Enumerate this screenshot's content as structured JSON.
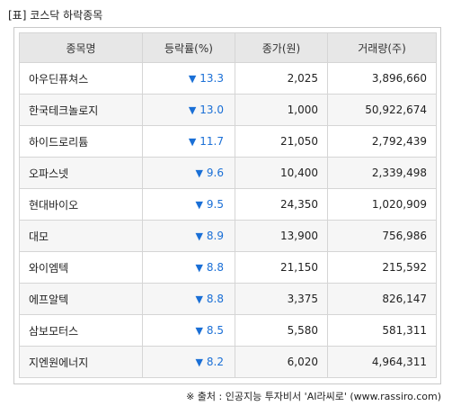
{
  "title": "[표] 코스닥 하락종목",
  "columns": [
    "종목명",
    "등락률(%)",
    "종가(원)",
    "거래량(주)"
  ],
  "down_symbol": "▼",
  "colors": {
    "down": "#1a6fd6",
    "header_bg": "#e7e7e7"
  },
  "rows": [
    {
      "name": "아우딘퓨쳐스",
      "change": "13.3",
      "close": "2,025",
      "volume": "3,896,660"
    },
    {
      "name": "한국테크놀로지",
      "change": "13.0",
      "close": "1,000",
      "volume": "50,922,674"
    },
    {
      "name": "하이드로리튬",
      "change": "11.7",
      "close": "21,050",
      "volume": "2,792,439"
    },
    {
      "name": "오파스넷",
      "change": "9.6",
      "close": "10,400",
      "volume": "2,339,498"
    },
    {
      "name": "현대바이오",
      "change": "9.5",
      "close": "24,350",
      "volume": "1,020,909"
    },
    {
      "name": "대모",
      "change": "8.9",
      "close": "13,900",
      "volume": "756,986"
    },
    {
      "name": "와이엠텍",
      "change": "8.8",
      "close": "21,150",
      "volume": "215,592"
    },
    {
      "name": "에프알텍",
      "change": "8.8",
      "close": "3,375",
      "volume": "826,147"
    },
    {
      "name": "삼보모터스",
      "change": "8.5",
      "close": "5,580",
      "volume": "581,311"
    },
    {
      "name": "지엔원에너지",
      "change": "8.2",
      "close": "6,020",
      "volume": "4,964,311"
    }
  ],
  "source": "※ 출처 : 인공지능 투자비서 'AI라씨로' (www.rassiro.com)"
}
